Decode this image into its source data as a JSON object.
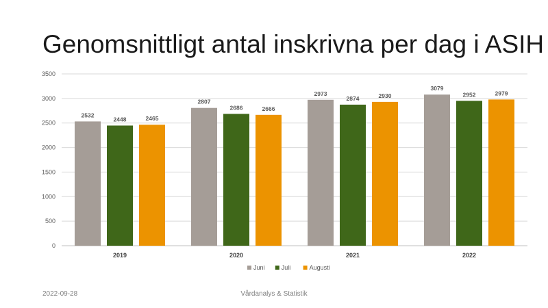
{
  "slide": {
    "title": "Genomsnittligt antal inskrivna per dag i ASIH",
    "footer_date": "2022-09-28",
    "footer_center": "Vårdanalys & Statistik"
  },
  "chart_data": {
    "type": "bar",
    "title": "Genomsnittligt antal inskrivna per dag i ASIH",
    "xlabel": "",
    "ylabel": "",
    "categories": [
      "2019",
      "2020",
      "2021",
      "2022"
    ],
    "series": [
      {
        "name": "Juni",
        "color": "#a59d97",
        "values": [
          2532,
          2807,
          2973,
          3079
        ]
      },
      {
        "name": "Juli",
        "color": "#3f6719",
        "values": [
          2448,
          2686,
          2874,
          2952
        ]
      },
      {
        "name": "Augusti",
        "color": "#ec9300",
        "values": [
          2465,
          2666,
          2930,
          2979
        ]
      }
    ],
    "ylim": [
      0,
      3500
    ],
    "yticks": [
      0,
      500,
      1000,
      1500,
      2000,
      2500,
      3000,
      3500
    ],
    "grid": true,
    "legend_position": "bottom",
    "gridline_color": "#d9d9d9",
    "axis_color": "#bfbfbf"
  }
}
